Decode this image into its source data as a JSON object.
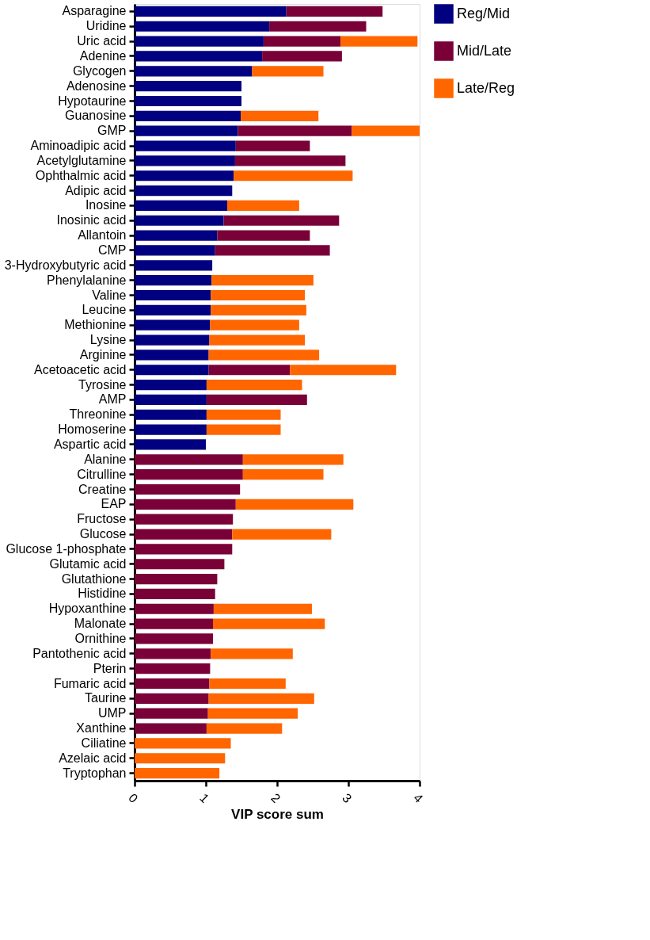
{
  "chart_data": {
    "type": "bar",
    "orientation": "horizontal",
    "stacked": true,
    "xlabel": "VIP score sum",
    "categories": [
      "Asparagine",
      "Uridine",
      "Uric acid",
      "Adenine",
      "Glycogen",
      "Adenosine",
      "Hypotaurine",
      "Guanosine",
      "GMP",
      "Aminoadipic acid",
      "Acetylglutamine",
      "Ophthalmic acid",
      "Adipic acid",
      "Inosine",
      "Inosinic acid",
      "Allantoin",
      "CMP",
      "3-Hydroxybutyric acid",
      "Phenylalanine",
      "Valine",
      "Leucine",
      "Methionine",
      "Lysine",
      "Arginine",
      "Acetoacetic acid",
      "Tyrosine",
      "AMP",
      "Threonine",
      "Homoserine",
      "Aspartic acid",
      "Alanine",
      "Citrulline",
      "Creatine",
      "EAP",
      "Fructose",
      "Glucose",
      "Glucose 1-phosphate",
      "Glutamic acid",
      "Glutathione",
      "Histidine",
      "Hypoxanthine",
      "Malonate",
      "Ornithine",
      "Pantothenic acid",
      "Pterin",
      "Fumaric acid",
      "Taurine",
      "UMP",
      "Xanthine",
      "Ciliatine",
      "Azelaic acid",
      "Tryptophan"
    ],
    "series": [
      {
        "name": "Reg/Mid",
        "color": "#000080",
        "values": [
          2.13,
          1.89,
          1.81,
          1.79,
          1.65,
          1.5,
          1.5,
          1.49,
          1.45,
          1.42,
          1.41,
          1.39,
          1.37,
          1.3,
          1.25,
          1.16,
          1.13,
          1.09,
          1.08,
          1.07,
          1.07,
          1.06,
          1.05,
          1.04,
          1.04,
          1.01,
          1.01,
          1.01,
          1.01,
          1.0,
          null,
          null,
          null,
          null,
          null,
          null,
          null,
          null,
          null,
          null,
          null,
          null,
          null,
          null,
          null,
          null,
          null,
          null,
          null,
          null,
          null,
          null
        ]
      },
      {
        "name": "Mid/Late",
        "color": "#7a0038",
        "values": [
          1.35,
          1.36,
          1.08,
          1.12,
          null,
          null,
          null,
          null,
          1.6,
          1.04,
          1.55,
          null,
          null,
          null,
          1.62,
          1.3,
          1.61,
          null,
          null,
          null,
          null,
          null,
          null,
          null,
          1.14,
          null,
          1.41,
          null,
          null,
          null,
          1.52,
          1.52,
          1.48,
          1.42,
          1.38,
          1.37,
          1.37,
          1.26,
          1.16,
          1.13,
          1.11,
          1.1,
          1.1,
          1.07,
          1.06,
          1.05,
          1.04,
          1.03,
          1.01,
          null,
          null,
          null
        ]
      },
      {
        "name": "Late/Reg",
        "color": "#ff6600",
        "values": [
          null,
          null,
          1.08,
          null,
          1.0,
          null,
          null,
          1.09,
          0.95,
          null,
          null,
          1.67,
          null,
          1.01,
          null,
          null,
          null,
          null,
          1.43,
          1.32,
          1.34,
          1.25,
          1.34,
          1.55,
          1.49,
          1.34,
          null,
          1.04,
          1.04,
          null,
          1.41,
          1.13,
          null,
          1.65,
          null,
          1.39,
          null,
          null,
          null,
          null,
          1.38,
          1.57,
          null,
          1.15,
          null,
          1.07,
          1.48,
          1.26,
          1.06,
          1.35,
          1.27,
          1.19
        ]
      }
    ],
    "xlim": [
      0,
      4
    ],
    "xticks": [
      0,
      1,
      2,
      3,
      4
    ],
    "grid": false,
    "legend": "right"
  }
}
